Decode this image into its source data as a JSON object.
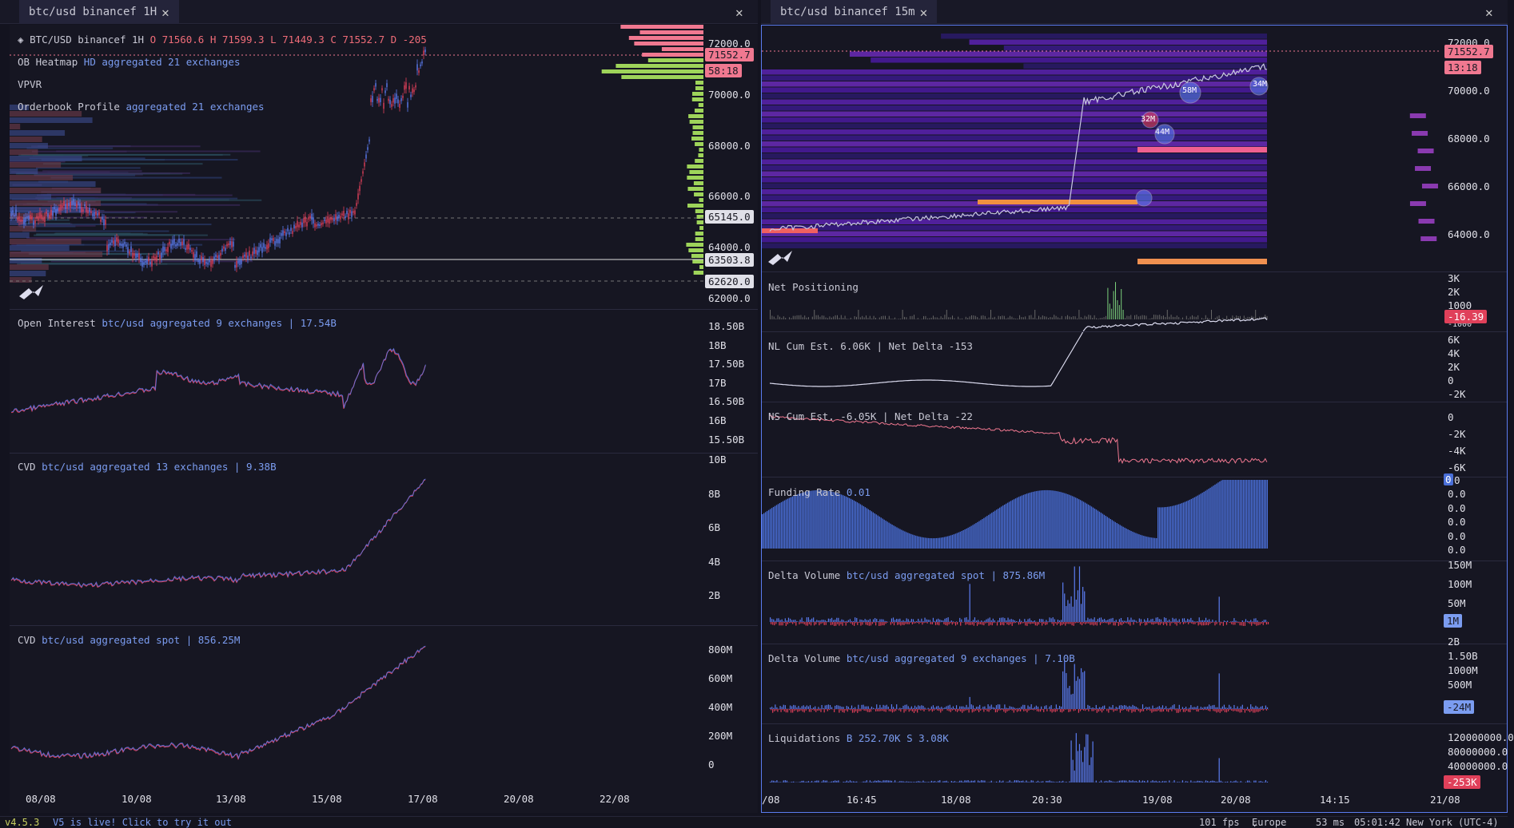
{
  "left_pane": {
    "tab_title": "btc/usd binancef 1H",
    "header": {
      "symbol": "BTC/USD binancef 1H",
      "ohlc": "O 71560.6 H 71599.3 L 71449.3 C 71552.7 D -205"
    },
    "overlays": {
      "heatmap_name": "OB Heatmap",
      "heatmap_detail": "HD aggregated 21 exchanges",
      "vpvr": "VPVR",
      "profile_name": "Orderbook Profile",
      "profile_detail": "aggregated 21 exchanges"
    },
    "price_axis": [
      "72000.0",
      "70000.0",
      "68000.0",
      "66000.0",
      "64000.0",
      "62000.0"
    ],
    "price_tags": {
      "last": "71552.7",
      "countdown": "58:18",
      "level1": "65145.0",
      "level2": "63503.8",
      "level3": "62620.0"
    },
    "oi": {
      "name": "Open Interest",
      "detail": "btc/usd aggregated 9 exchanges | 17.54B",
      "axis": [
        "18.50B",
        "18B",
        "17.50B",
        "17B",
        "16.50B",
        "16B",
        "15.50B"
      ]
    },
    "cvd1": {
      "name": "CVD",
      "detail": "btc/usd aggregated 13 exchanges | 9.38B",
      "axis": [
        "10B",
        "8B",
        "6B",
        "4B",
        "2B"
      ]
    },
    "cvd2": {
      "name": "CVD",
      "detail": "btc/usd aggregated spot | 856.25M",
      "axis": [
        "800M",
        "600M",
        "400M",
        "200M",
        "0"
      ]
    },
    "time_axis": [
      "08/08",
      "10/08",
      "13/08",
      "15/08",
      "17/08",
      "20/08",
      "22/08"
    ]
  },
  "right_pane": {
    "tab_title": "btc/usd binancef 15m",
    "price_axis": [
      "72000.0",
      "70000.0",
      "68000.0",
      "66000.0",
      "64000.0"
    ],
    "price_tags": {
      "last": "71552.7",
      "countdown": "13:18"
    },
    "bubbles": [
      "32M",
      "44M",
      "58M",
      "34M"
    ],
    "net_positioning": {
      "name": "Net Positioning",
      "axis": [
        "3K",
        "2K",
        "1000"
      ],
      "tag": "-16.39",
      "cut": "-1000"
    },
    "nl": {
      "name": "NL Cum Est. 6.06K | Net Delta -153",
      "axis": [
        "6K",
        "4K",
        "2K",
        "0",
        "-2K"
      ]
    },
    "ns": {
      "name": "NS Cum Est. -6.05K | Net Delta -22",
      "axis": [
        "0",
        "-2K",
        "-4K",
        "-6K"
      ]
    },
    "funding": {
      "name": "Funding Rate",
      "value": "0.01",
      "axis": [
        "0",
        "0.0",
        "0.0",
        "0.0",
        "0.0",
        "0.0"
      ],
      "tag": "0"
    },
    "dv_spot": {
      "name": "Delta Volume",
      "detail": "btc/usd aggregated spot | 875.86M",
      "axis": [
        "150M",
        "100M",
        "50M"
      ],
      "tag": "1M"
    },
    "dv_agg": {
      "name": "Delta Volume",
      "detail": "btc/usd aggregated 9 exchanges | 7.10B",
      "axis": [
        "2B",
        "1.50B",
        "1000M",
        "500M"
      ],
      "tag": "-24M"
    },
    "liq": {
      "name": "Liquidations",
      "detail": "B 252.70K S 3.08K",
      "axis": [
        "120000000.0",
        "80000000.0",
        "40000000.0"
      ],
      "tag": "-253K"
    },
    "time_axis": [
      "/08",
      "16:45",
      "18/08",
      "20:30",
      "19/08",
      "20/08",
      "14:15",
      "21/08"
    ]
  },
  "status": {
    "version": "v4.5.3",
    "announcement": "V5 is live! Click to try it out",
    "fps": "101 fps",
    "region": "Europe",
    "latency": "53 ms",
    "clock": "05:01:42 New York (UTC-4)"
  },
  "colors": {
    "bg": "#161622",
    "up": "#5b7cf0",
    "down": "#e0405a",
    "bid": "#9ed45a",
    "ask": "#f07890",
    "accent": "#4a6fd8"
  }
}
